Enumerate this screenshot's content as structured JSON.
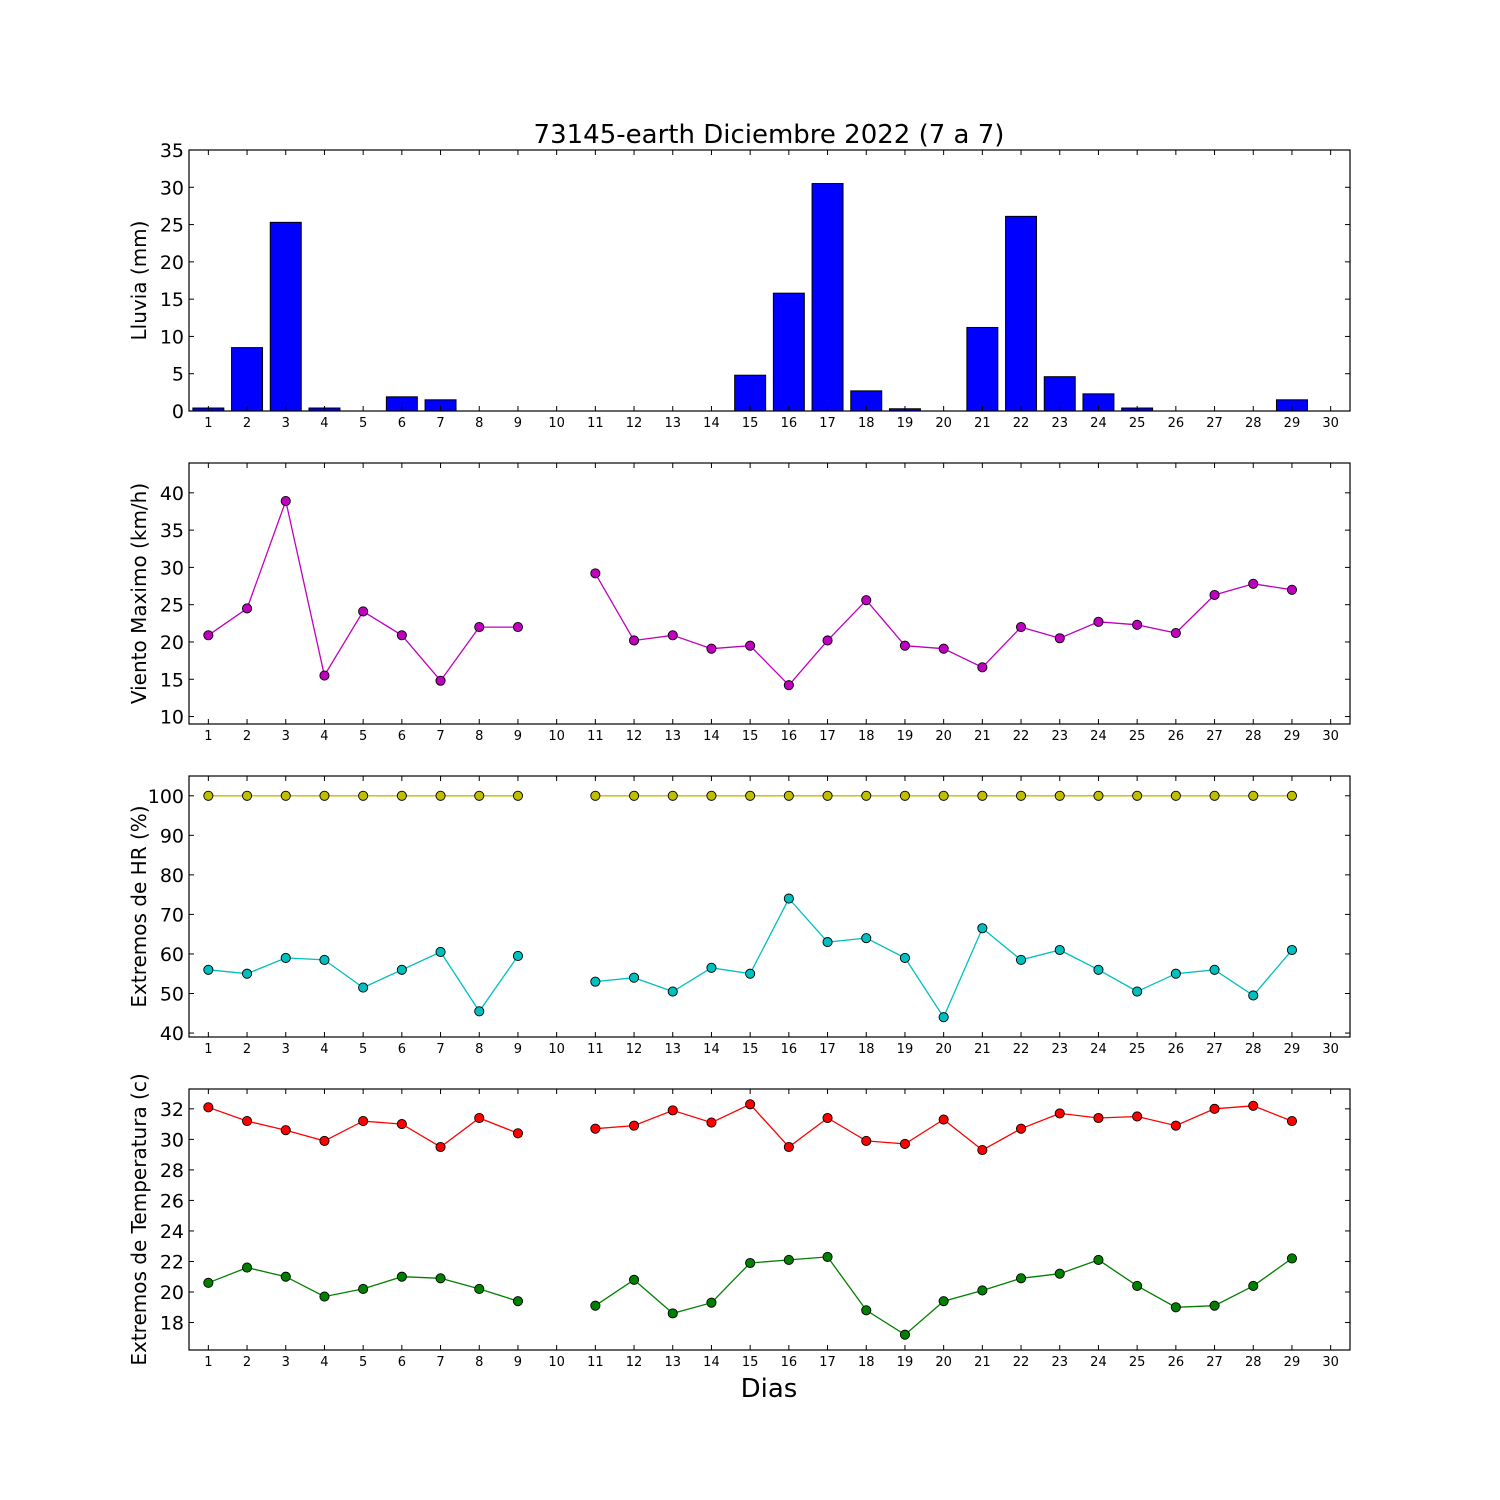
{
  "title": "73145-earth Diciembre 2022  (7 a 7)",
  "xlabel": "Dias",
  "colors": {
    "bar": "#0000ff",
    "wind": "#bf00bf",
    "hr_max": "#bfbf00",
    "hr_min": "#00bfbf",
    "temp_max": "#ff0000",
    "temp_min": "#008000"
  },
  "chart_data": [
    {
      "type": "bar",
      "ylabel": "Lluvia (mm)",
      "x": [
        1,
        2,
        3,
        4,
        5,
        6,
        7,
        8,
        9,
        10,
        11,
        12,
        13,
        14,
        15,
        16,
        17,
        18,
        19,
        20,
        21,
        22,
        23,
        24,
        25,
        26,
        27,
        28,
        29,
        30
      ],
      "xlim": [
        0.5,
        30.5
      ],
      "ylim": [
        0,
        35
      ],
      "yticks": [
        0,
        5,
        10,
        15,
        20,
        25,
        30,
        35
      ],
      "grid": false,
      "values": [
        0.4,
        8.5,
        25.3,
        0.4,
        0,
        1.9,
        1.5,
        0,
        0,
        0,
        0,
        0,
        0,
        0,
        4.8,
        15.8,
        30.5,
        2.7,
        0.3,
        0,
        11.2,
        26.1,
        4.6,
        2.3,
        0.4,
        0,
        0,
        0,
        1.5,
        0
      ]
    },
    {
      "type": "line",
      "ylabel": "Viento Maximo (km/h)",
      "x": [
        1,
        2,
        3,
        4,
        5,
        6,
        7,
        8,
        9,
        10,
        11,
        12,
        13,
        14,
        15,
        16,
        17,
        18,
        19,
        20,
        21,
        22,
        23,
        24,
        25,
        26,
        27,
        28,
        29,
        30
      ],
      "xlim": [
        0.5,
        30.5
      ],
      "ylim": [
        9,
        44
      ],
      "yticks": [
        10,
        15,
        20,
        25,
        30,
        35,
        40
      ],
      "grid": false,
      "series": [
        {
          "color_key": "wind",
          "values": [
            20.9,
            24.5,
            38.9,
            15.5,
            24.1,
            20.9,
            14.8,
            22.0,
            22.0,
            null,
            29.2,
            20.2,
            20.9,
            19.1,
            19.5,
            14.2,
            20.2,
            25.6,
            19.5,
            19.1,
            16.6,
            22.0,
            20.5,
            22.7,
            22.3,
            21.2,
            26.3,
            27.8,
            27.0,
            null
          ]
        }
      ]
    },
    {
      "type": "line",
      "ylabel": "Extremos de HR (%)",
      "x": [
        1,
        2,
        3,
        4,
        5,
        6,
        7,
        8,
        9,
        10,
        11,
        12,
        13,
        14,
        15,
        16,
        17,
        18,
        19,
        20,
        21,
        22,
        23,
        24,
        25,
        26,
        27,
        28,
        29,
        30
      ],
      "xlim": [
        0.5,
        30.5
      ],
      "ylim": [
        39,
        105
      ],
      "yticks": [
        40,
        50,
        60,
        70,
        80,
        90,
        100
      ],
      "grid": false,
      "series": [
        {
          "color_key": "hr_max",
          "values": [
            100,
            100,
            100,
            100,
            100,
            100,
            100,
            100,
            100,
            null,
            100,
            100,
            100,
            100,
            100,
            100,
            100,
            100,
            100,
            100,
            100,
            100,
            100,
            100,
            100,
            100,
            100,
            100,
            100,
            null
          ]
        },
        {
          "color_key": "hr_min",
          "values": [
            56,
            55,
            59,
            58.5,
            51.5,
            56,
            60.5,
            45.5,
            59.5,
            null,
            53,
            54,
            50.5,
            56.5,
            55,
            74,
            63,
            64,
            59,
            44,
            66.5,
            58.5,
            61,
            56,
            50.5,
            55,
            56,
            49.5,
            61,
            null
          ]
        }
      ]
    },
    {
      "type": "line",
      "ylabel": "Extremos de Temperatura (c)",
      "x": [
        1,
        2,
        3,
        4,
        5,
        6,
        7,
        8,
        9,
        10,
        11,
        12,
        13,
        14,
        15,
        16,
        17,
        18,
        19,
        20,
        21,
        22,
        23,
        24,
        25,
        26,
        27,
        28,
        29,
        30
      ],
      "xlim": [
        0.5,
        30.5
      ],
      "ylim": [
        16.2,
        33.3
      ],
      "yticks": [
        18,
        20,
        22,
        24,
        26,
        28,
        30,
        32
      ],
      "grid": false,
      "series": [
        {
          "color_key": "temp_max",
          "values": [
            32.1,
            31.2,
            30.6,
            29.9,
            31.2,
            31.0,
            29.5,
            31.4,
            30.4,
            null,
            30.7,
            30.9,
            31.9,
            31.1,
            32.3,
            29.5,
            31.4,
            29.9,
            29.7,
            31.3,
            29.3,
            30.7,
            31.7,
            31.4,
            31.5,
            30.9,
            32.0,
            32.2,
            31.2,
            null
          ]
        },
        {
          "color_key": "temp_min",
          "values": [
            20.6,
            21.6,
            21.0,
            19.7,
            20.2,
            21.0,
            20.9,
            20.2,
            19.4,
            null,
            19.1,
            20.8,
            18.6,
            19.3,
            21.9,
            22.1,
            22.3,
            18.8,
            17.2,
            19.4,
            20.1,
            20.9,
            21.2,
            22.1,
            20.4,
            19.0,
            19.1,
            20.4,
            22.2,
            null
          ]
        }
      ]
    }
  ]
}
